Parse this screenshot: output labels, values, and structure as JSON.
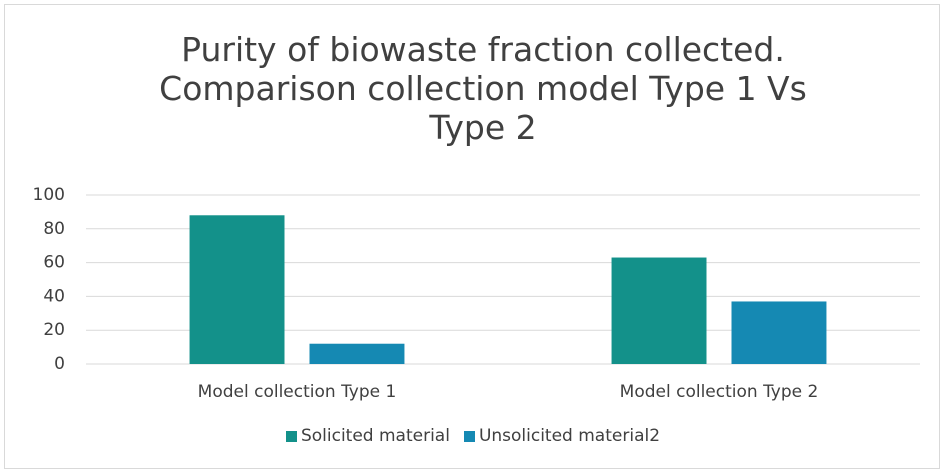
{
  "chart_data": {
    "type": "bar",
    "title": "Purity of biowaste fraction collected. Comparison collection model Type 1 Vs Type 2",
    "categories": [
      "Model collection Type 1",
      "Model collection Type 2"
    ],
    "series": [
      {
        "name": "Solicited material",
        "color": "#13918a",
        "values": [
          88,
          63
        ]
      },
      {
        "name": "Unsolicited material2",
        "color": "#1589b3",
        "values": [
          12,
          37
        ]
      }
    ],
    "ylim": [
      0,
      100
    ],
    "yticks": [
      0,
      20,
      40,
      60,
      80,
      100
    ],
    "grid": true,
    "legend": "bottom"
  }
}
